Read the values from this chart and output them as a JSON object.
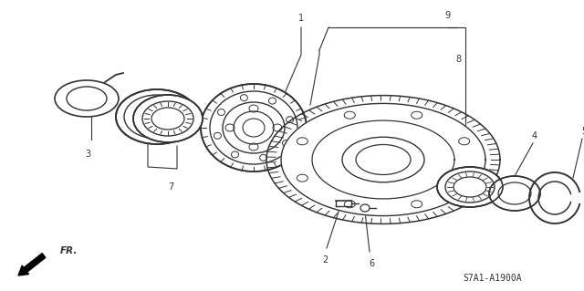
{
  "diagram_code": "S7A1-A1900A",
  "background_color": "#ffffff",
  "line_color": "#333333",
  "label_color": "#111111",
  "figw": 6.4,
  "figh": 3.19,
  "dpi": 100
}
